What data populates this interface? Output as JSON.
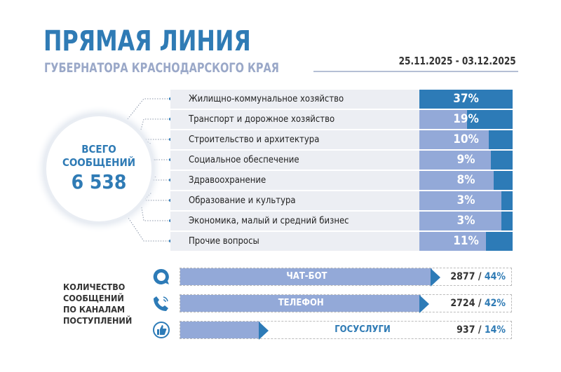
{
  "header": {
    "title": "ПРЯМАЯ ЛИНИЯ",
    "subtitle": "ГУБЕРНАТОРА КРАСНОДАРСКОГО КРАЯ",
    "date_range": "25.11.2025 - 03.12.2025"
  },
  "total": {
    "line1": "ВСЕГО",
    "line2": "СООБЩЕНИЙ",
    "value": "6 538"
  },
  "colors": {
    "primary": "#2d7bb7",
    "light": "#93a9d8",
    "label_bg": "#eceef3"
  },
  "categories": [
    {
      "label": "Жилищно-коммунальное хозяйство",
      "percent": "37%",
      "value": 37
    },
    {
      "label": "Транспорт и дорожное хозяйство",
      "percent": "19%",
      "value": 19
    },
    {
      "label": "Строительство и архитектура",
      "percent": "10%",
      "value": 10
    },
    {
      "label": "Социальное обеспечение",
      "percent": "9%",
      "value": 9
    },
    {
      "label": "Здравоохранение",
      "percent": "8%",
      "value": 8
    },
    {
      "label": "Образование и культура",
      "percent": "3%",
      "value": 3
    },
    {
      "label": "Экономика, малый и средний бизнес",
      "percent": "3%",
      "value": 3
    },
    {
      "label": "Прочие вопросы",
      "percent": "11%",
      "value": 11
    }
  ],
  "channels": {
    "label": [
      "КОЛИЧЕСТВО",
      "СООБЩЕНИЙ",
      "ПО КАНАЛАМ",
      "ПОСТУПЛЕНИЙ"
    ],
    "items": [
      {
        "name": "ЧАТ-БОТ",
        "count": "2877",
        "sep": " / ",
        "percent": "44%",
        "value": 44,
        "icon": "chat-icon"
      },
      {
        "name": "ТЕЛЕФОН",
        "count": "2724",
        "sep": " / ",
        "percent": "42%",
        "value": 42,
        "icon": "phone-icon"
      },
      {
        "name": "ГОСУСЛУГИ",
        "count": "937",
        "sep": " / ",
        "percent": "14%",
        "value": 14,
        "icon": "thumbs-up-icon"
      }
    ]
  }
}
